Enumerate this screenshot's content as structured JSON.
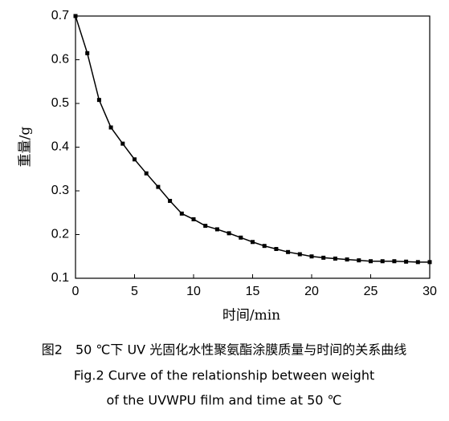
{
  "chart_data": {
    "type": "line",
    "x": [
      0,
      1,
      2,
      3,
      4,
      5,
      6,
      7,
      8,
      9,
      10,
      11,
      12,
      13,
      14,
      15,
      16,
      17,
      18,
      19,
      20,
      21,
      22,
      23,
      24,
      25,
      26,
      27,
      28,
      29,
      30
    ],
    "series": [
      {
        "color": "#000000",
        "values": [
          0.7,
          0.615,
          0.508,
          0.445,
          0.408,
          0.372,
          0.34,
          0.309,
          0.277,
          0.248,
          0.235,
          0.22,
          0.212,
          0.203,
          0.193,
          0.183,
          0.174,
          0.167,
          0.16,
          0.155,
          0.15,
          0.147,
          0.145,
          0.143,
          0.141,
          0.139,
          0.139,
          0.139,
          0.138,
          0.137,
          0.137
        ]
      }
    ],
    "xlim": [
      0,
      30
    ],
    "xticks": [
      0,
      5,
      10,
      15,
      20,
      25,
      30
    ],
    "ylim": [
      0.1,
      0.7
    ],
    "yticks": [
      0.1,
      0.2,
      0.3,
      0.4,
      0.5,
      0.6,
      0.7
    ],
    "xlabel": "时间/min",
    "ylabel": "重量/g",
    "caption": [
      "图2　50 ℃下 UV 光固化水性聚氨酯涂膜质量与时间的关系曲线",
      "Fig.2 Curve of the relationship between weight",
      "of the UVWPU film and time at 50 ℃"
    ]
  }
}
